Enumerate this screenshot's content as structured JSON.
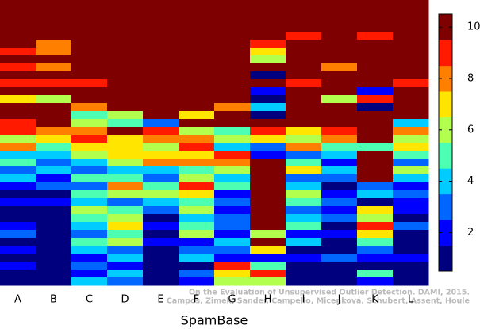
{
  "chart_data": {
    "type": "heatmap",
    "x_label": "SpamBase",
    "categories": [
      "A",
      "B",
      "C",
      "D",
      "E",
      "F",
      "G",
      "H",
      "I",
      "J",
      "K",
      "L"
    ],
    "columns": [
      [
        10,
        10,
        10,
        10,
        10,
        10,
        9,
        10,
        9,
        10,
        9,
        10,
        7,
        10,
        10,
        9,
        9,
        6,
        8,
        4,
        5,
        3,
        4,
        2,
        1,
        2,
        1,
        1,
        2,
        3,
        1,
        2,
        1,
        2,
        1,
        1
      ],
      [
        10,
        10,
        10,
        10,
        10,
        8,
        8,
        10,
        8,
        10,
        9,
        10,
        6,
        10,
        10,
        10,
        8,
        7,
        5,
        4,
        3,
        4,
        2,
        3,
        1,
        2,
        1,
        1,
        1,
        1,
        1,
        1,
        1,
        1,
        1,
        1
      ],
      [
        10,
        10,
        10,
        10,
        10,
        10,
        10,
        10,
        10,
        10,
        9,
        10,
        10,
        8,
        5,
        6,
        8,
        9,
        7,
        6,
        4,
        3,
        5,
        3,
        5,
        4,
        6,
        5,
        4,
        3,
        5,
        4,
        2,
        3,
        2,
        4
      ],
      [
        10,
        10,
        10,
        10,
        10,
        10,
        10,
        10,
        10,
        10,
        10,
        10,
        10,
        10,
        6,
        5,
        10,
        7,
        7,
        7,
        6,
        4,
        5,
        8,
        6,
        3,
        5,
        6,
        7,
        5,
        6,
        3,
        4,
        2,
        4,
        3
      ],
      [
        10,
        10,
        10,
        10,
        10,
        10,
        10,
        10,
        10,
        10,
        10,
        10,
        10,
        10,
        10,
        3,
        9,
        8,
        6,
        7,
        8,
        4,
        3,
        5,
        6,
        4,
        3,
        1,
        2,
        1,
        2,
        1,
        1,
        1,
        1,
        1
      ],
      [
        10,
        10,
        10,
        10,
        10,
        10,
        10,
        10,
        10,
        10,
        10,
        10,
        10,
        10,
        7,
        10,
        6,
        8,
        9,
        7,
        8,
        5,
        6,
        9,
        7,
        5,
        6,
        4,
        5,
        6,
        2,
        3,
        4,
        1,
        3,
        2
      ],
      [
        10,
        10,
        10,
        10,
        10,
        10,
        10,
        10,
        10,
        10,
        10,
        10,
        10,
        8,
        10,
        10,
        5,
        6,
        4,
        9,
        8,
        6,
        4,
        5,
        2,
        3,
        2,
        3,
        3,
        2,
        4,
        3,
        2,
        9,
        7,
        6
      ],
      [
        10,
        10,
        10,
        10,
        10,
        9,
        7,
        6,
        10,
        1,
        10,
        2,
        1,
        4,
        1,
        10,
        9,
        7,
        3,
        2,
        10,
        10,
        10,
        10,
        10,
        10,
        10,
        10,
        10,
        6,
        10,
        7,
        2,
        5,
        9,
        6
      ],
      [
        10,
        10,
        10,
        10,
        9,
        10,
        10,
        10,
        10,
        10,
        9,
        10,
        10,
        10,
        10,
        10,
        7,
        6,
        8,
        3,
        5,
        7,
        3,
        4,
        6,
        5,
        3,
        4,
        5,
        2,
        4,
        1,
        2,
        1,
        1,
        1
      ],
      [
        10,
        10,
        10,
        10,
        10,
        10,
        10,
        10,
        8,
        10,
        10,
        10,
        6,
        10,
        10,
        10,
        9,
        8,
        5,
        4,
        2,
        4,
        3,
        1,
        2,
        3,
        2,
        3,
        1,
        2,
        1,
        1,
        3,
        1,
        1,
        1
      ],
      [
        10,
        10,
        10,
        10,
        9,
        10,
        10,
        10,
        10,
        10,
        10,
        2,
        9,
        1,
        10,
        10,
        10,
        10,
        5,
        10,
        10,
        10,
        10,
        3,
        4,
        1,
        7,
        6,
        9,
        7,
        5,
        3,
        2,
        1,
        5,
        2
      ],
      [
        10,
        10,
        10,
        10,
        10,
        10,
        10,
        10,
        10,
        10,
        9,
        10,
        10,
        10,
        10,
        4,
        8,
        6,
        7,
        5,
        3,
        6,
        4,
        2,
        3,
        2,
        2,
        1,
        3,
        1,
        1,
        1,
        2,
        1,
        1,
        1
      ]
    ],
    "colors": [
      "#00007f",
      "#0000ff",
      "#0066ff",
      "#00ccff",
      "#4dffb2",
      "#b2ff4d",
      "#ffe500",
      "#ff7f00",
      "#ff1a00",
      "#7f0000"
    ],
    "zlim": [
      0.5,
      10.5
    ],
    "zticks": [
      2,
      4,
      6,
      8,
      10
    ],
    "annotations": [
      "On the Evaluation of Unsupervised Outlier Detection. DAMI, 2015.",
      "Campos, Zimek, Sander, Campello, Micenková, Schubert, Assent, Houle"
    ]
  }
}
